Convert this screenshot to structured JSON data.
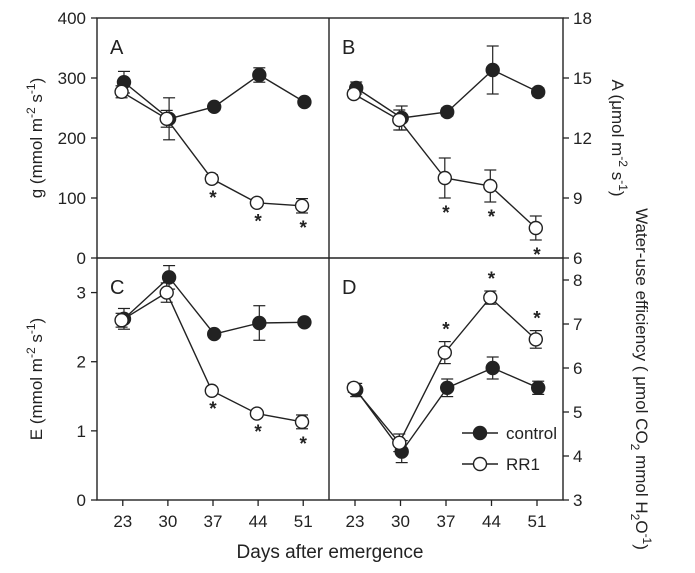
{
  "figure": {
    "xlabel": "Days after emergence",
    "legend": [
      {
        "name": "control",
        "marker": "filled-circle"
      },
      {
        "name": "RR1",
        "marker": "open-circle"
      }
    ]
  },
  "chart_data": [
    {
      "panel": "A",
      "type": "line",
      "ylabel": "g (mmol m-2 s-1)",
      "ylim": [
        0,
        400
      ],
      "yticks": [
        0,
        100,
        200,
        300,
        400
      ],
      "x": [
        23,
        30,
        37,
        44,
        51
      ],
      "xlim": [
        19,
        55
      ],
      "series": [
        {
          "name": "control",
          "values": [
            293,
            232,
            252,
            305,
            260
          ],
          "errors": [
            18,
            35,
            6,
            12,
            6
          ]
        },
        {
          "name": "RR1",
          "values": [
            277,
            232,
            132,
            92,
            87
          ],
          "errors": [
            10,
            14,
            7,
            6,
            12
          ]
        }
      ],
      "significant": [
        37,
        44,
        51
      ]
    },
    {
      "panel": "B",
      "type": "line",
      "ylabel": "A (μmol m-2 s-1)",
      "ylim": [
        6,
        18
      ],
      "yticks": [
        6,
        9,
        12,
        15,
        18
      ],
      "x": [
        23,
        30,
        37,
        44,
        51
      ],
      "xlim": [
        19,
        55
      ],
      "series": [
        {
          "name": "control",
          "values": [
            14.5,
            13.0,
            13.3,
            15.4,
            14.3
          ],
          "errors": [
            0.3,
            0.6,
            0.2,
            1.2,
            0.2
          ]
        },
        {
          "name": "RR1",
          "values": [
            14.2,
            12.9,
            10.0,
            9.6,
            7.5
          ],
          "errors": [
            0.2,
            0.5,
            1.0,
            0.8,
            0.6
          ]
        }
      ],
      "significant": [
        37,
        44,
        51
      ]
    },
    {
      "panel": "C",
      "type": "line",
      "ylabel": "E (mmol m-2 s-1)",
      "ylim": [
        0,
        3.5
      ],
      "yticks": [
        0,
        1,
        2,
        3
      ],
      "x": [
        23,
        30,
        37,
        44,
        51
      ],
      "xlim": [
        19,
        55
      ],
      "series": [
        {
          "name": "control",
          "values": [
            2.62,
            3.22,
            2.4,
            2.56,
            2.57
          ],
          "errors": [
            0.15,
            0.17,
            0.05,
            0.25,
            0.05
          ]
        },
        {
          "name": "RR1",
          "values": [
            2.6,
            3.0,
            1.58,
            1.25,
            1.13
          ],
          "errors": [
            0.1,
            0.14,
            0.05,
            0.05,
            0.1
          ]
        }
      ],
      "significant": [
        37,
        44,
        51
      ]
    },
    {
      "panel": "D",
      "type": "line",
      "ylabel": "Water-use efficiency ( μmol CO2 mmol H2O-1)",
      "ylim": [
        3,
        8.5
      ],
      "yticks": [
        3,
        4,
        5,
        6,
        7,
        8
      ],
      "x": [
        23,
        30,
        37,
        44,
        51
      ],
      "xlim": [
        19,
        55
      ],
      "series": [
        {
          "name": "control",
          "values": [
            5.5,
            4.1,
            5.55,
            6.0,
            5.55
          ],
          "errors": [
            0.15,
            0.25,
            0.2,
            0.25,
            0.15
          ]
        },
        {
          "name": "RR1",
          "values": [
            5.55,
            4.3,
            6.35,
            7.6,
            6.65
          ],
          "errors": [
            0.1,
            0.2,
            0.25,
            0.15,
            0.2
          ]
        }
      ],
      "significant": [
        37,
        44,
        51
      ]
    }
  ]
}
